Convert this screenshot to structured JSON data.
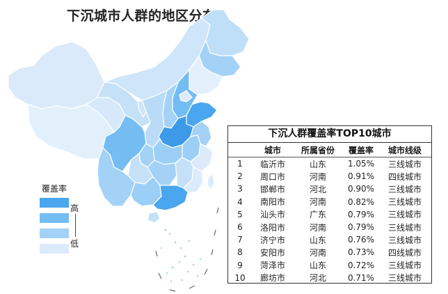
{
  "title": "下沉城市人群的地区分布",
  "legend": {
    "title": "覆盖率",
    "high_label": "高",
    "low_label": "低",
    "colors": [
      "#4aa6ee",
      "#74bdf3",
      "#a3d2f6",
      "#dcebfb"
    ]
  },
  "map": {
    "description_colors": {
      "darkest": "#3d9ae9",
      "dark": "#6cb8f1",
      "medium": "#9ccff5",
      "light": "#c4e1f8",
      "lightest": "#e3f0fc"
    }
  },
  "table": {
    "title": "下沉人群覆盖率TOP10城市",
    "headers": [
      "",
      "城市",
      "所属省份",
      "覆盖率",
      "城市线级"
    ],
    "rows": [
      [
        "1",
        "临沂市",
        "山东",
        "1.05%",
        "三线城市"
      ],
      [
        "2",
        "周口市",
        "河南",
        "0.91%",
        "四线城市"
      ],
      [
        "3",
        "邯郸市",
        "河北",
        "0.90%",
        "三线城市"
      ],
      [
        "4",
        "南阳市",
        "河南",
        "0.82%",
        "三线城市"
      ],
      [
        "5",
        "汕头市",
        "广东",
        "0.79%",
        "三线城市"
      ],
      [
        "6",
        "洛阳市",
        "河南",
        "0.79%",
        "三线城市"
      ],
      [
        "7",
        "济宁市",
        "山东",
        "0.76%",
        "三线城市"
      ],
      [
        "8",
        "安阳市",
        "河南",
        "0.73%",
        "四线城市"
      ],
      [
        "9",
        "菏泽市",
        "山东",
        "0.72%",
        "三线城市"
      ],
      [
        "10",
        "廊坊市",
        "河北",
        "0.71%",
        "三线城市"
      ]
    ]
  }
}
